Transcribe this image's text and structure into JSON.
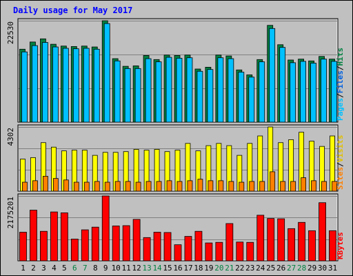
{
  "chart_data": [
    {
      "type": "bar",
      "title": "Daily usage for May 2017",
      "categories": [
        "1",
        "2",
        "3",
        "4",
        "5",
        "6",
        "7",
        "8",
        "9",
        "10",
        "11",
        "12",
        "13",
        "14",
        "15",
        "16",
        "17",
        "18",
        "19",
        "20",
        "21",
        "22",
        "23",
        "24",
        "25",
        "26",
        "27",
        "28",
        "29",
        "30",
        "31"
      ],
      "weekend_days": [
        "6",
        "7",
        "13",
        "14",
        "20",
        "21",
        "27",
        "28"
      ],
      "panels": [
        {
          "id": "hits-files-pages",
          "ymax_label": "22530",
          "ylim": [
            0,
            22530
          ],
          "series": [
            {
              "name": "Hits",
              "color": "#008040",
              "values": [
                16200,
                17800,
                18500,
                17300,
                16900,
                16800,
                16900,
                16700,
                22530,
                14100,
                12400,
                12500,
                14800,
                13900,
                14900,
                14800,
                14900,
                11800,
                12200,
                14900,
                14700,
                11600,
                10500,
                13900,
                21500,
                17200,
                13800,
                14000,
                13600,
                14600,
                14000
              ]
            },
            {
              "name": "Files",
              "color": "#00c0ff",
              "values": [
                15600,
                17000,
                17700,
                16700,
                16400,
                16300,
                16400,
                16200,
                21900,
                13600,
                11900,
                11900,
                14100,
                13400,
                14400,
                14200,
                14300,
                11300,
                11700,
                14300,
                14100,
                11100,
                10000,
                13400,
                20800,
                16600,
                13200,
                13500,
                13100,
                14000,
                13500
              ]
            },
            {
              "name": "Pages",
              "color": "#00c0ff",
              "values": [
                0,
                0,
                0,
                0,
                0,
                0,
                0,
                0,
                0,
                0,
                0,
                0,
                0,
                0,
                0,
                0,
                0,
                0,
                0,
                0,
                0,
                0,
                0,
                0,
                0,
                0,
                0,
                0,
                0,
                0,
                0
              ]
            }
          ]
        },
        {
          "id": "visits-sites",
          "ymax_label": "4302",
          "ylim": [
            0,
            4302
          ],
          "series": [
            {
              "name": "Visits",
              "color": "#ffff00",
              "values": [
                2150,
                2250,
                3250,
                2950,
                2700,
                2750,
                2750,
                2400,
                2600,
                2600,
                2650,
                2800,
                2750,
                2800,
                2650,
                2750,
                3200,
                2700,
                3050,
                3200,
                3050,
                2400,
                3200,
                3700,
                4302,
                3250,
                3450,
                3950,
                3350,
                3000,
                3700
              ]
            },
            {
              "name": "Sites",
              "color": "#ff8000",
              "values": [
                600,
                700,
                1000,
                850,
                750,
                600,
                600,
                650,
                600,
                650,
                650,
                600,
                650,
                650,
                700,
                650,
                700,
                800,
                700,
                700,
                650,
                600,
                650,
                650,
                1300,
                650,
                650,
                900,
                700,
                650,
                650
              ]
            }
          ]
        },
        {
          "id": "kbytes",
          "ymax_label": "2175201",
          "ylim": [
            0,
            2175201
          ],
          "series": [
            {
              "name": "KBytes",
              "color": "#ff0000",
              "values": [
                960000,
                1700000,
                990000,
                1640000,
                1610000,
                730000,
                1040000,
                1130000,
                2175201,
                1170000,
                1180000,
                1390000,
                780000,
                960000,
                950000,
                540000,
                820000,
                990000,
                600000,
                620000,
                1250000,
                630000,
                620000,
                1530000,
                1420000,
                1410000,
                1080000,
                1290000,
                1010000,
                1950000,
                1010000
              ]
            }
          ]
        }
      ],
      "legends": [
        {
          "panel": "hits-files-pages",
          "items": [
            {
              "text": "Pages",
              "color": "#00c0ff"
            },
            {
              "text": "/",
              "color": "#000000"
            },
            {
              "text": "Files",
              "color": "#0060e0"
            },
            {
              "text": "/",
              "color": "#000000"
            },
            {
              "text": "Hits",
              "color": "#008040"
            }
          ]
        },
        {
          "panel": "visits-sites",
          "items": [
            {
              "text": "Sites",
              "color": "#ff8000"
            },
            {
              "text": "/",
              "color": "#000000"
            },
            {
              "text": "Visits",
              "color": "#e0c000"
            }
          ]
        },
        {
          "panel": "kbytes",
          "items": [
            {
              "text": "KBytes",
              "color": "#ff0000"
            }
          ]
        }
      ],
      "colors": {
        "background": "#c0c0c0",
        "title": "#0000ff",
        "weekday_label": "#000000",
        "weekend_label": "#008040"
      },
      "grid": true
    }
  ]
}
